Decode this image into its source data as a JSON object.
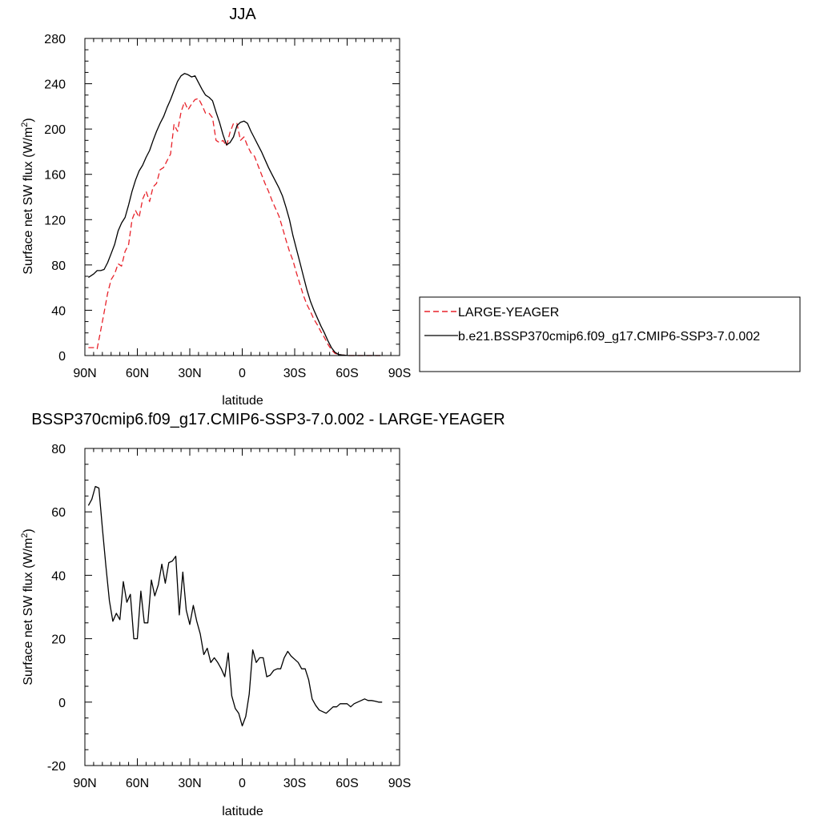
{
  "chart_data": [
    {
      "type": "line",
      "title": "JJA",
      "xlabel": "latitude",
      "ylabel": "Surface net SW flux (W/m",
      "ylabel_sup": "2",
      "ylabel_end": ")",
      "xlim": [
        90,
        -90
      ],
      "ylim": [
        0,
        280
      ],
      "xticks": [
        90,
        60,
        30,
        0,
        -30,
        -60,
        -90
      ],
      "xtick_labels": [
        "90N",
        "60N",
        "30N",
        "0",
        "30S",
        "60S",
        "90S"
      ],
      "yticks": [
        0,
        40,
        80,
        120,
        160,
        200,
        240,
        280
      ],
      "ytick_labels": [
        "0",
        "40",
        "80",
        "120",
        "160",
        "200",
        "240",
        "280"
      ],
      "legend_placement": "right",
      "series": [
        {
          "name": "LARGE-YEAGER",
          "color": "#e8222a",
          "style": "dashed",
          "x": [
            88,
            85,
            83,
            81,
            79,
            77,
            75,
            73,
            71,
            69,
            67,
            65,
            63,
            61,
            59,
            57,
            55,
            53,
            51,
            49,
            47,
            45,
            43,
            41,
            39,
            37,
            35,
            33,
            31,
            29,
            27,
            25,
            23,
            21,
            19,
            17,
            15,
            13,
            11,
            9,
            7,
            5,
            3,
            1,
            -1,
            -3,
            -5,
            -7,
            -9,
            -11,
            -13,
            -15,
            -17,
            -19,
            -21,
            -23,
            -25,
            -27,
            -29,
            -31,
            -33,
            -35,
            -37,
            -39,
            -41,
            -43,
            -45,
            -47,
            -49,
            -51,
            -53,
            -55,
            -57,
            -59,
            -61,
            -63,
            -65,
            -67,
            -69,
            -71,
            -73,
            -75,
            -77,
            -79
          ],
          "y": [
            7,
            7,
            6,
            22,
            38,
            55,
            67,
            72,
            81,
            79,
            92,
            98,
            120,
            128,
            122,
            138,
            145,
            136,
            149,
            152,
            164,
            166,
            172,
            178,
            204,
            198,
            215,
            224,
            217,
            222,
            226,
            227,
            221,
            214,
            214,
            210,
            190,
            188,
            190,
            185,
            197,
            205,
            205,
            190,
            193,
            185,
            179,
            176,
            168,
            160,
            152,
            145,
            137,
            130,
            123,
            113,
            102,
            92,
            84,
            73,
            63,
            53,
            45,
            39,
            32,
            27,
            21,
            16,
            10,
            5,
            2,
            1,
            0.5,
            0.2,
            0,
            0,
            0,
            0,
            0,
            0,
            0,
            0,
            0,
            0
          ]
        },
        {
          "name": "b.e21.BSSP370cmip6.f09_g17.CMIP6-SSP3-7.0.002",
          "color": "#000000",
          "style": "solid",
          "x": [
            88,
            85,
            83,
            81,
            79,
            77,
            75,
            73,
            71,
            69,
            67,
            65,
            63,
            61,
            59,
            57,
            55,
            53,
            51,
            49,
            47,
            45,
            43,
            41,
            39,
            37,
            35,
            33,
            31,
            29,
            27,
            25,
            23,
            21,
            19,
            17,
            15,
            13,
            11,
            9,
            7,
            5,
            3,
            1,
            -1,
            -3,
            -5,
            -7,
            -9,
            -11,
            -13,
            -15,
            -17,
            -19,
            -21,
            -23,
            -25,
            -27,
            -29,
            -31,
            -33,
            -35,
            -37,
            -39,
            -41,
            -43,
            -45,
            -47,
            -49,
            -51,
            -53,
            -55,
            -57,
            -59,
            -61,
            -63,
            -65,
            -67,
            -69,
            -71,
            -73,
            -75,
            -77,
            -79
          ],
          "y": [
            69,
            72,
            75,
            75,
            76,
            82,
            90,
            98,
            110,
            117,
            122,
            133,
            145,
            155,
            163,
            168,
            175,
            181,
            190,
            198,
            205,
            211,
            219,
            226,
            234,
            242,
            247,
            249,
            248,
            246,
            247,
            241,
            235,
            230,
            228,
            225,
            215,
            206,
            195,
            186,
            188,
            193,
            203,
            206,
            207,
            205,
            198,
            192,
            186,
            180,
            173,
            166,
            160,
            154,
            148,
            141,
            131,
            120,
            106,
            94,
            82,
            70,
            58,
            48,
            40,
            33,
            26,
            20,
            13,
            7,
            3,
            1,
            0.5,
            0.2,
            0,
            0,
            0,
            0,
            0,
            0,
            0,
            0,
            0,
            0
          ]
        }
      ]
    },
    {
      "type": "line",
      "title": "BSSP370cmip6.f09_g17.CMIP6-SSP3-7.0.002 - LARGE-YEAGER",
      "xlabel": "latitude",
      "ylabel": "Surface net SW flux (W/m",
      "ylabel_sup": "2",
      "ylabel_end": ")",
      "xlim": [
        90,
        -90
      ],
      "ylim": [
        -20,
        80
      ],
      "xticks": [
        90,
        60,
        30,
        0,
        -30,
        -60,
        -90
      ],
      "xtick_labels": [
        "90N",
        "60N",
        "30N",
        "0",
        "30S",
        "60S",
        "90S"
      ],
      "yticks": [
        -20,
        0,
        20,
        40,
        60,
        80
      ],
      "ytick_labels": [
        "-20",
        "0",
        "20",
        "40",
        "60",
        "80"
      ],
      "series": [
        {
          "color": "#000000",
          "style": "solid",
          "x": [
            88,
            86,
            84,
            82,
            80,
            78,
            76,
            74,
            72,
            70,
            68,
            66,
            64,
            62,
            60,
            58,
            56,
            54,
            52,
            50,
            48,
            46,
            44,
            42,
            40,
            38,
            36,
            34,
            32,
            30,
            28,
            26,
            24,
            22,
            20,
            18,
            16,
            14,
            12,
            10,
            8,
            6,
            4,
            2,
            0,
            -2,
            -4,
            -6,
            -8,
            -10,
            -12,
            -14,
            -16,
            -18,
            -20,
            -22,
            -24,
            -26,
            -28,
            -30,
            -32,
            -34,
            -36,
            -38,
            -40,
            -42,
            -44,
            -46,
            -48,
            -50,
            -52,
            -54,
            -56,
            -58,
            -60,
            -62,
            -64,
            -66,
            -68,
            -70,
            -72,
            -74,
            -76,
            -78,
            -80
          ],
          "y": [
            62,
            64,
            68,
            67.5,
            55,
            43,
            32,
            25.5,
            28,
            26,
            38,
            31.5,
            34,
            20,
            20,
            35,
            25,
            25,
            38.5,
            33.5,
            37,
            43.5,
            37.5,
            44,
            44.5,
            46,
            27.5,
            41,
            29,
            24.5,
            30.5,
            25.5,
            21.5,
            15,
            17,
            12.5,
            14,
            12.5,
            10.5,
            8,
            15.5,
            2,
            -2,
            -3.5,
            -7.5,
            -4.5,
            2.5,
            16.5,
            12.5,
            14,
            14,
            8,
            8.5,
            10,
            10.5,
            10.5,
            14,
            16,
            14.5,
            13.5,
            12.5,
            10.5,
            10.5,
            7,
            1,
            -1,
            -2.5,
            -3,
            -3.5,
            -2.5,
            -1.5,
            -1.5,
            -0.5,
            -0.5,
            -0.5,
            -1.5,
            -0.5,
            0,
            0.5,
            1,
            0.5,
            0.5,
            0.3,
            0,
            0
          ]
        }
      ]
    }
  ]
}
